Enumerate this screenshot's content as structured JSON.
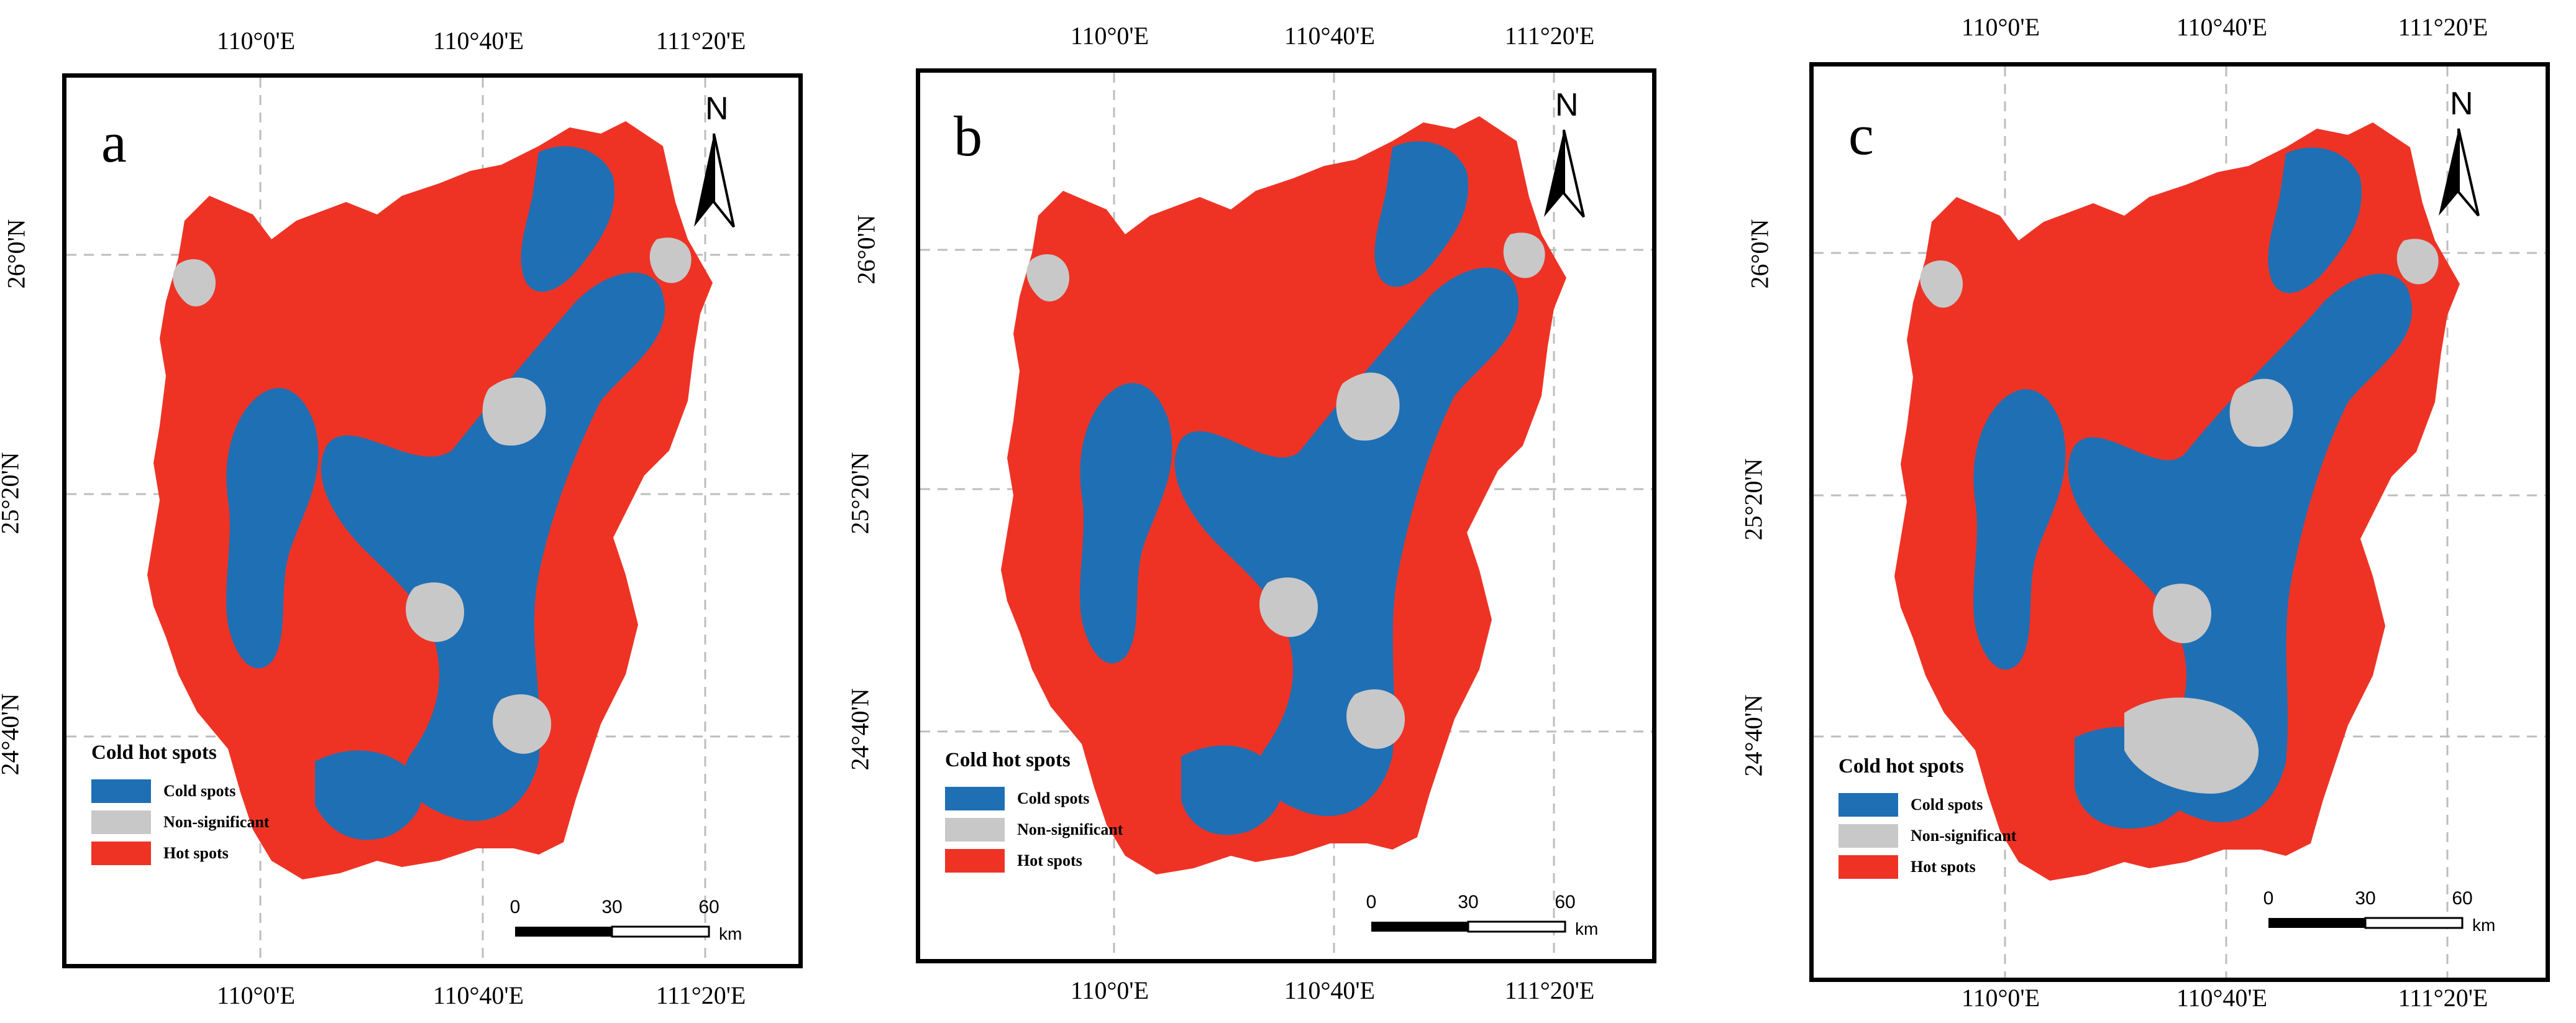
{
  "colors": {
    "cold": "#1f6fb4",
    "nonsig": "#c8c8c8",
    "hot": "#ee3325",
    "grid": "#bdbdbd"
  },
  "axes": {
    "lon_labels": [
      "110°0'E",
      "110°40'E",
      "111°20'E"
    ],
    "lat_labels": [
      "26°0'N",
      "25°20'N",
      "24°40'N"
    ]
  },
  "north_arrow": {
    "letter": "N",
    "icon": "north-arrow-icon"
  },
  "legend": {
    "title": "Cold hot spots",
    "items": [
      {
        "label": "Cold spots",
        "color": "#1f6fb4"
      },
      {
        "label": "Non-significant",
        "color": "#c8c8c8"
      },
      {
        "label": "Hot spots",
        "color": "#ee3325"
      }
    ]
  },
  "scalebar": {
    "ticks": [
      "0",
      "30",
      "60"
    ],
    "unit": "km"
  },
  "panels": [
    {
      "letter": "a"
    },
    {
      "letter": "b"
    },
    {
      "letter": "c"
    }
  ]
}
